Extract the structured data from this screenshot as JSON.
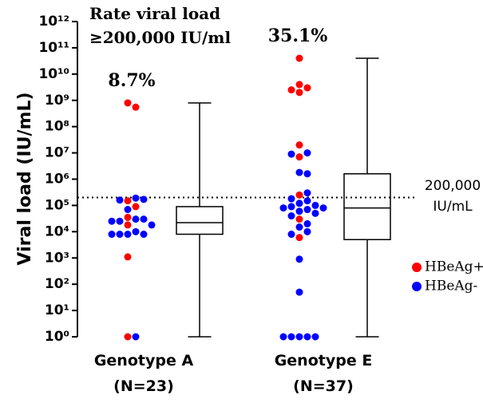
{
  "chart_data": {
    "type": "scatter_box",
    "ylabel": "Viral load (IU/mL)",
    "log_y": true,
    "ylim": [
      1,
      1000000000000
    ],
    "yticks": [
      {
        "value": 1,
        "label": "10⁰"
      },
      {
        "value": 10,
        "label": "10¹"
      },
      {
        "value": 100,
        "label": "10²"
      },
      {
        "value": 1000,
        "label": "10³"
      },
      {
        "value": 10000,
        "label": "10⁴"
      },
      {
        "value": 100000,
        "label": "10⁵"
      },
      {
        "value": 1000000,
        "label": "10⁶"
      },
      {
        "value": 10000000,
        "label": "10⁷"
      },
      {
        "value": 100000000,
        "label": "10⁸"
      },
      {
        "value": 1000000000,
        "label": "10⁹"
      },
      {
        "value": 10000000000,
        "label": "10¹⁰"
      },
      {
        "value": 100000000000,
        "label": "10¹¹"
      },
      {
        "value": 1000000000000,
        "label": "10¹²"
      }
    ],
    "categories": [
      "Genotype A",
      "Genotype E"
    ],
    "category_counts": [
      "(N=23)",
      "(N=37)"
    ],
    "annotations": [
      "Rate viral load",
      "≥200,000 IU/ml",
      "8.7%",
      "35.1%"
    ],
    "threshold": {
      "value": 200000,
      "label": [
        "200,000",
        "IU/mL"
      ]
    },
    "series": [
      {
        "name": "HBeAg+",
        "color": "#ff0000",
        "x": [
          "Genotype A",
          "Genotype A",
          "Genotype A",
          "Genotype A",
          "Genotype A",
          "Genotype A",
          "Genotype A",
          "Genotype A",
          "Genotype E",
          "Genotype E",
          "Genotype E",
          "Genotype E",
          "Genotype E",
          "Genotype E",
          "Genotype E",
          "Genotype E",
          "Genotype E",
          "Genotype E"
        ],
        "values": [
          800000000,
          550000000,
          150000,
          90000,
          35000,
          18000,
          1100,
          1,
          40000000000,
          4000000000,
          3000000000,
          2500000000,
          2000000000,
          20000000,
          7000000,
          250000,
          30000,
          6000
        ]
      },
      {
        "name": "HBeAg-",
        "color": "#0000ff",
        "x": [
          "Genotype A",
          "Genotype A",
          "Genotype A",
          "Genotype A",
          "Genotype A",
          "Genotype A",
          "Genotype A",
          "Genotype A",
          "Genotype A",
          "Genotype A",
          "Genotype A",
          "Genotype A",
          "Genotype A",
          "Genotype A",
          "Genotype A",
          "Genotype E",
          "Genotype E",
          "Genotype E",
          "Genotype E",
          "Genotype E",
          "Genotype E",
          "Genotype E",
          "Genotype E",
          "Genotype E",
          "Genotype E",
          "Genotype E",
          "Genotype E",
          "Genotype E",
          "Genotype E",
          "Genotype E",
          "Genotype E",
          "Genotype E",
          "Genotype E",
          "Genotype E",
          "Genotype E",
          "Genotype E",
          "Genotype E",
          "Genotype E",
          "Genotype E",
          "Genotype E",
          "Genotype E",
          "Genotype E"
        ],
        "values": [
          160000,
          190000,
          170000,
          70000,
          30000,
          25000,
          30000,
          25000,
          18000,
          10000,
          8000,
          8000,
          8000,
          8000,
          1,
          10000000,
          9000000,
          1800000,
          1600000,
          300000,
          180000,
          150000,
          120000,
          100000,
          90000,
          80000,
          80000,
          70000,
          60000,
          50000,
          40000,
          20000,
          15000,
          10000,
          8000,
          900,
          50,
          1,
          1,
          1,
          1,
          1
        ]
      }
    ],
    "boxes": [
      {
        "category": "Genotype A",
        "min": 1,
        "q1": 8000,
        "median": 22000,
        "q3": 90000,
        "max": 800000000
      },
      {
        "category": "Genotype E",
        "min": 1,
        "q1": 5000,
        "median": 80000,
        "q3": 1600000,
        "max": 40000000000
      }
    ]
  }
}
